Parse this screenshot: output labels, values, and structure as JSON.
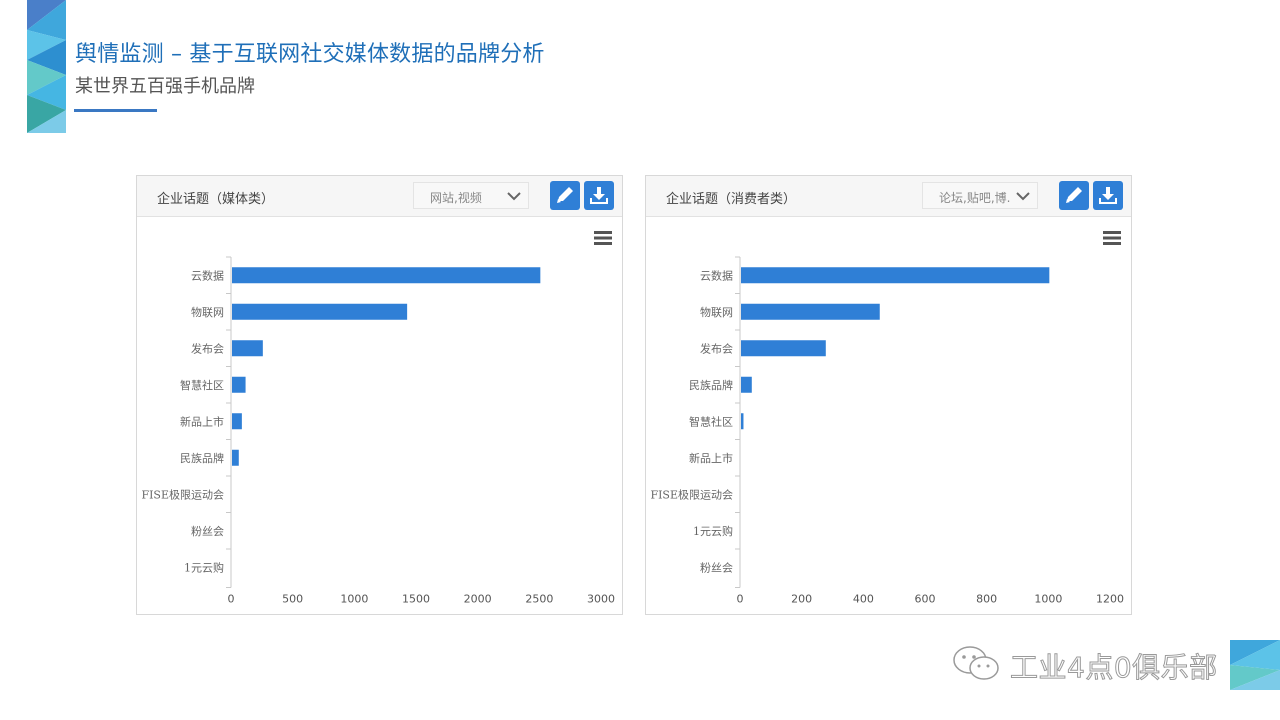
{
  "page": {
    "title": "舆情监测 – 基于互联网社交媒体数据的品牌分析",
    "subtitle": "某世界五百强手机品牌",
    "watermark": "工业4点0俱乐部"
  },
  "colors": {
    "accent": "#2f7fd6",
    "bar": "#2f7fd6",
    "title": "#1f6fb8"
  },
  "icons": {
    "edit": "pencil-icon",
    "download": "download-icon",
    "menu": "hamburger-menu-icon",
    "dropdown": "chevron-down-icon",
    "wechat": "wechat-icon"
  },
  "panels": [
    {
      "title": "企业话题（媒体类）",
      "select_value": "网站,视频"
    },
    {
      "title": "企业话题（消费者类）",
      "select_value": "论坛,贴吧,博..."
    }
  ],
  "chart_data": [
    {
      "type": "bar",
      "orientation": "horizontal",
      "categories": [
        "云数据",
        "物联网",
        "发布会",
        "智慧社区",
        "新品上市",
        "民族品牌",
        "FISE极限运动会",
        "粉丝会",
        "1元云购"
      ],
      "values": [
        2500,
        1420,
        250,
        110,
        80,
        55,
        0,
        0,
        0
      ],
      "xlim": [
        0,
        3000
      ],
      "x_ticks": [
        "0",
        "500",
        "1000",
        "1500",
        "2000",
        "2500",
        "3000"
      ],
      "x_tick_values": [
        0,
        500,
        1000,
        1500,
        2000,
        2500,
        3000
      ],
      "grid": false
    },
    {
      "type": "bar",
      "orientation": "horizontal",
      "categories": [
        "云数据",
        "物联网",
        "发布会",
        "民族品牌",
        "智慧社区",
        "新品上市",
        "FISE极限运动会",
        "1元云购",
        "粉丝会"
      ],
      "values": [
        1000,
        450,
        275,
        35,
        8,
        0,
        0,
        0,
        0
      ],
      "xlim": [
        0,
        1200
      ],
      "x_ticks": [
        "0",
        "200",
        "400",
        "600",
        "800",
        "1000",
        "1200"
      ],
      "x_tick_values": [
        0,
        200,
        400,
        600,
        800,
        1000,
        1200
      ],
      "grid": false
    }
  ]
}
